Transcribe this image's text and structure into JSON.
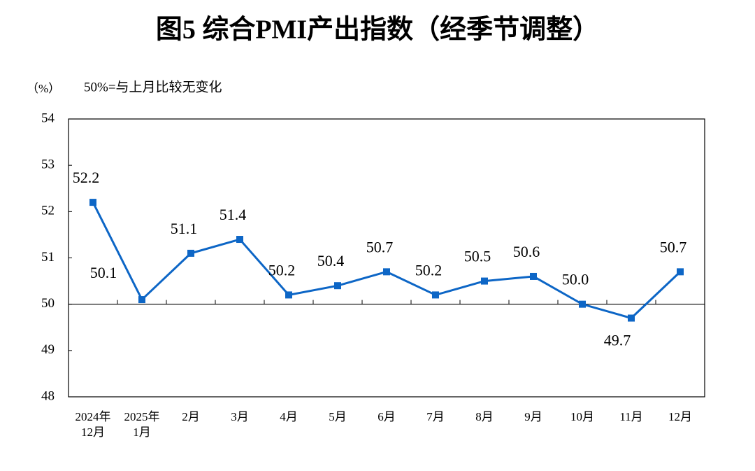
{
  "chart_data": {
    "type": "line",
    "title": "图5  综合PMI产出指数（经季节调整）",
    "y_unit": "（%）",
    "annotation": "50%=与上月比较无变化",
    "categories": [
      "2024年\n12月",
      "2025年\n1月",
      "2月",
      "3月",
      "4月",
      "5月",
      "6月",
      "7月",
      "8月",
      "9月",
      "10月",
      "11月",
      "12月"
    ],
    "values": [
      52.2,
      50.1,
      51.1,
      51.4,
      50.2,
      50.4,
      50.7,
      50.2,
      50.5,
      50.6,
      50.0,
      49.7,
      50.7
    ],
    "value_labels": [
      "52.2",
      "50.1",
      "51.1",
      "51.4",
      "50.2",
      "50.4",
      "50.7",
      "50.2",
      "50.5",
      "50.6",
      "50.0",
      "49.7",
      "50.7"
    ],
    "color": "#0d66c6",
    "reference_line": 50,
    "ylim": [
      48,
      54
    ],
    "yticks": [
      48,
      49,
      50,
      51,
      52,
      53,
      54
    ]
  }
}
